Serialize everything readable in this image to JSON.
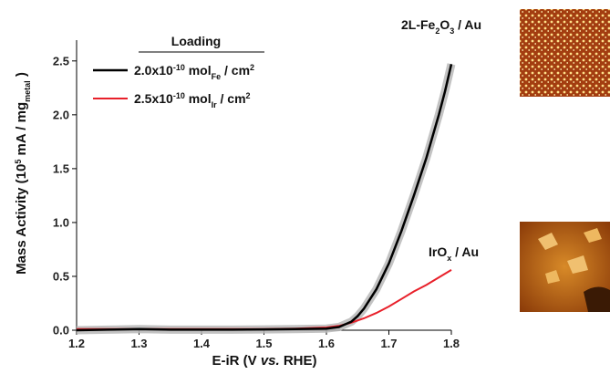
{
  "chart_data": {
    "type": "line",
    "xlabel_parts": [
      "E-iR (V ",
      "vs.",
      " RHE)"
    ],
    "ylabel_parts": {
      "pre": "Mass Activity (10",
      "sup": "5",
      "mid": " mA / mg",
      "sub": "metal",
      "post": " )"
    },
    "xlim": [
      1.2,
      1.8
    ],
    "ylim": [
      0,
      2.6
    ],
    "x_ticks": [
      "1.2",
      "1.3",
      "1.4",
      "1.5",
      "1.6",
      "1.7",
      "1.8"
    ],
    "y_ticks": [
      "0.0",
      "0.5",
      "1.0",
      "1.5",
      "2.0",
      "2.5"
    ],
    "legend": {
      "title": "Loading",
      "position": "top-left",
      "entries": [
        {
          "parts": [
            "2.0x10",
            "-10",
            " mol",
            "Fe",
            " / cm",
            "2"
          ]
        },
        {
          "parts": [
            "2.5x10",
            "-10",
            "  mol",
            "Ir",
            " / cm",
            "2"
          ]
        }
      ]
    },
    "series": [
      {
        "color": "#000000",
        "x": [
          1.2,
          1.25,
          1.3,
          1.35,
          1.4,
          1.45,
          1.5,
          1.55,
          1.6,
          1.62,
          1.64,
          1.65,
          1.66,
          1.68,
          1.7,
          1.72,
          1.74,
          1.76,
          1.78,
          1.79,
          1.8
        ],
        "y": [
          0.0,
          0.005,
          0.01,
          0.005,
          0.005,
          0.005,
          0.008,
          0.01,
          0.015,
          0.03,
          0.08,
          0.13,
          0.2,
          0.38,
          0.62,
          0.92,
          1.25,
          1.6,
          2.0,
          2.22,
          2.47
        ]
      },
      {
        "color": "#e8202a",
        "x": [
          1.2,
          1.25,
          1.3,
          1.35,
          1.4,
          1.45,
          1.5,
          1.55,
          1.6,
          1.62,
          1.64,
          1.66,
          1.68,
          1.7,
          1.72,
          1.74,
          1.76,
          1.78,
          1.8
        ],
        "y": [
          0.01,
          0.01,
          0.01,
          0.01,
          0.01,
          0.01,
          0.01,
          0.015,
          0.025,
          0.04,
          0.07,
          0.11,
          0.16,
          0.22,
          0.29,
          0.36,
          0.42,
          0.49,
          0.56
        ]
      }
    ],
    "annotations": {
      "fe2o3": {
        "pre": "2L-Fe",
        "sub1": "2",
        "mid": "O",
        "sub2": "3",
        "post": " / Au"
      },
      "irox": {
        "pre": "IrO",
        "sub": "x",
        "post": " / Au"
      }
    },
    "colors": {
      "fe_line": "#000000",
      "ir_line": "#e8202a",
      "shadow": "#b8b8b8"
    }
  }
}
